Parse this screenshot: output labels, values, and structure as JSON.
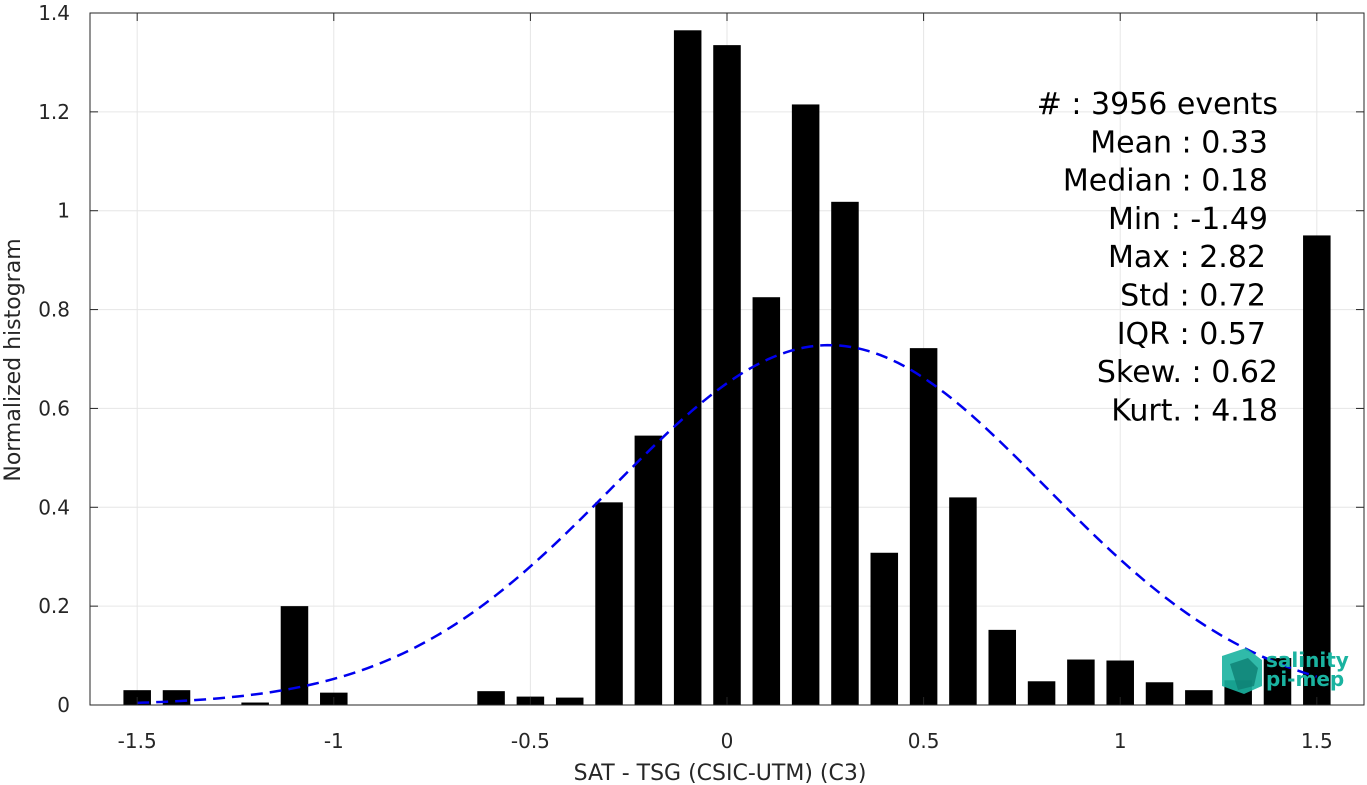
{
  "chart_data": {
    "type": "bar",
    "title": "",
    "xlabel": "SAT - TSG (CSIC-UTM) (C3)",
    "ylabel": "Normalized histogram",
    "xlim": [
      -1.62,
      1.62
    ],
    "ylim": [
      0,
      1.4
    ],
    "grid": true,
    "bar_width": 0.07,
    "xticks": [
      -1.5,
      -1,
      -0.5,
      0,
      0.5,
      1,
      1.5
    ],
    "xtick_labels": [
      "-1.5",
      "-1",
      "-0.5",
      "0",
      "0.5",
      "1",
      "1.5"
    ],
    "yticks": [
      0,
      0.2,
      0.4,
      0.6,
      0.8,
      1,
      1.2,
      1.4
    ],
    "ytick_labels": [
      "0",
      "0.2",
      "0.4",
      "0.6",
      "0.8",
      "1",
      "1.2",
      "1.4"
    ],
    "bars": [
      {
        "x": -1.5,
        "y": 0.03
      },
      {
        "x": -1.4,
        "y": 0.03
      },
      {
        "x": -1.2,
        "y": 0.005
      },
      {
        "x": -1.1,
        "y": 0.2
      },
      {
        "x": -1.0,
        "y": 0.025
      },
      {
        "x": -0.6,
        "y": 0.028
      },
      {
        "x": -0.5,
        "y": 0.017
      },
      {
        "x": -0.4,
        "y": 0.015
      },
      {
        "x": -0.3,
        "y": 0.41
      },
      {
        "x": -0.2,
        "y": 0.545
      },
      {
        "x": -0.1,
        "y": 1.365
      },
      {
        "x": 0.0,
        "y": 1.335
      },
      {
        "x": 0.1,
        "y": 0.825
      },
      {
        "x": 0.2,
        "y": 1.215
      },
      {
        "x": 0.3,
        "y": 1.018
      },
      {
        "x": 0.4,
        "y": 0.308
      },
      {
        "x": 0.5,
        "y": 0.722
      },
      {
        "x": 0.6,
        "y": 0.42
      },
      {
        "x": 0.7,
        "y": 0.152
      },
      {
        "x": 0.8,
        "y": 0.048
      },
      {
        "x": 0.9,
        "y": 0.092
      },
      {
        "x": 1.0,
        "y": 0.09
      },
      {
        "x": 1.1,
        "y": 0.046
      },
      {
        "x": 1.2,
        "y": 0.03
      },
      {
        "x": 1.3,
        "y": 0.05
      },
      {
        "x": 1.4,
        "y": 0.095
      },
      {
        "x": 1.5,
        "y": 0.95
      }
    ],
    "gaussian_fit": {
      "mean": 0.26,
      "std": 0.55,
      "peak": 0.728,
      "x_range": [
        -1.5,
        1.5
      ],
      "color": "#0000ee",
      "style": "dashed"
    },
    "bar_color": "#000000",
    "stats_lines": [
      "#  : 3956 events",
      "Mean : 0.33",
      "Median : 0.18",
      "Min : -1.49",
      "Max : 2.82",
      "Std : 0.72",
      "IQR : 0.57",
      "Skew. : 0.62",
      "Kurt. : 4.18"
    ]
  },
  "logo": {
    "line1": "salinity",
    "line2": "pi-mep",
    "color": "#1ab3a0"
  }
}
